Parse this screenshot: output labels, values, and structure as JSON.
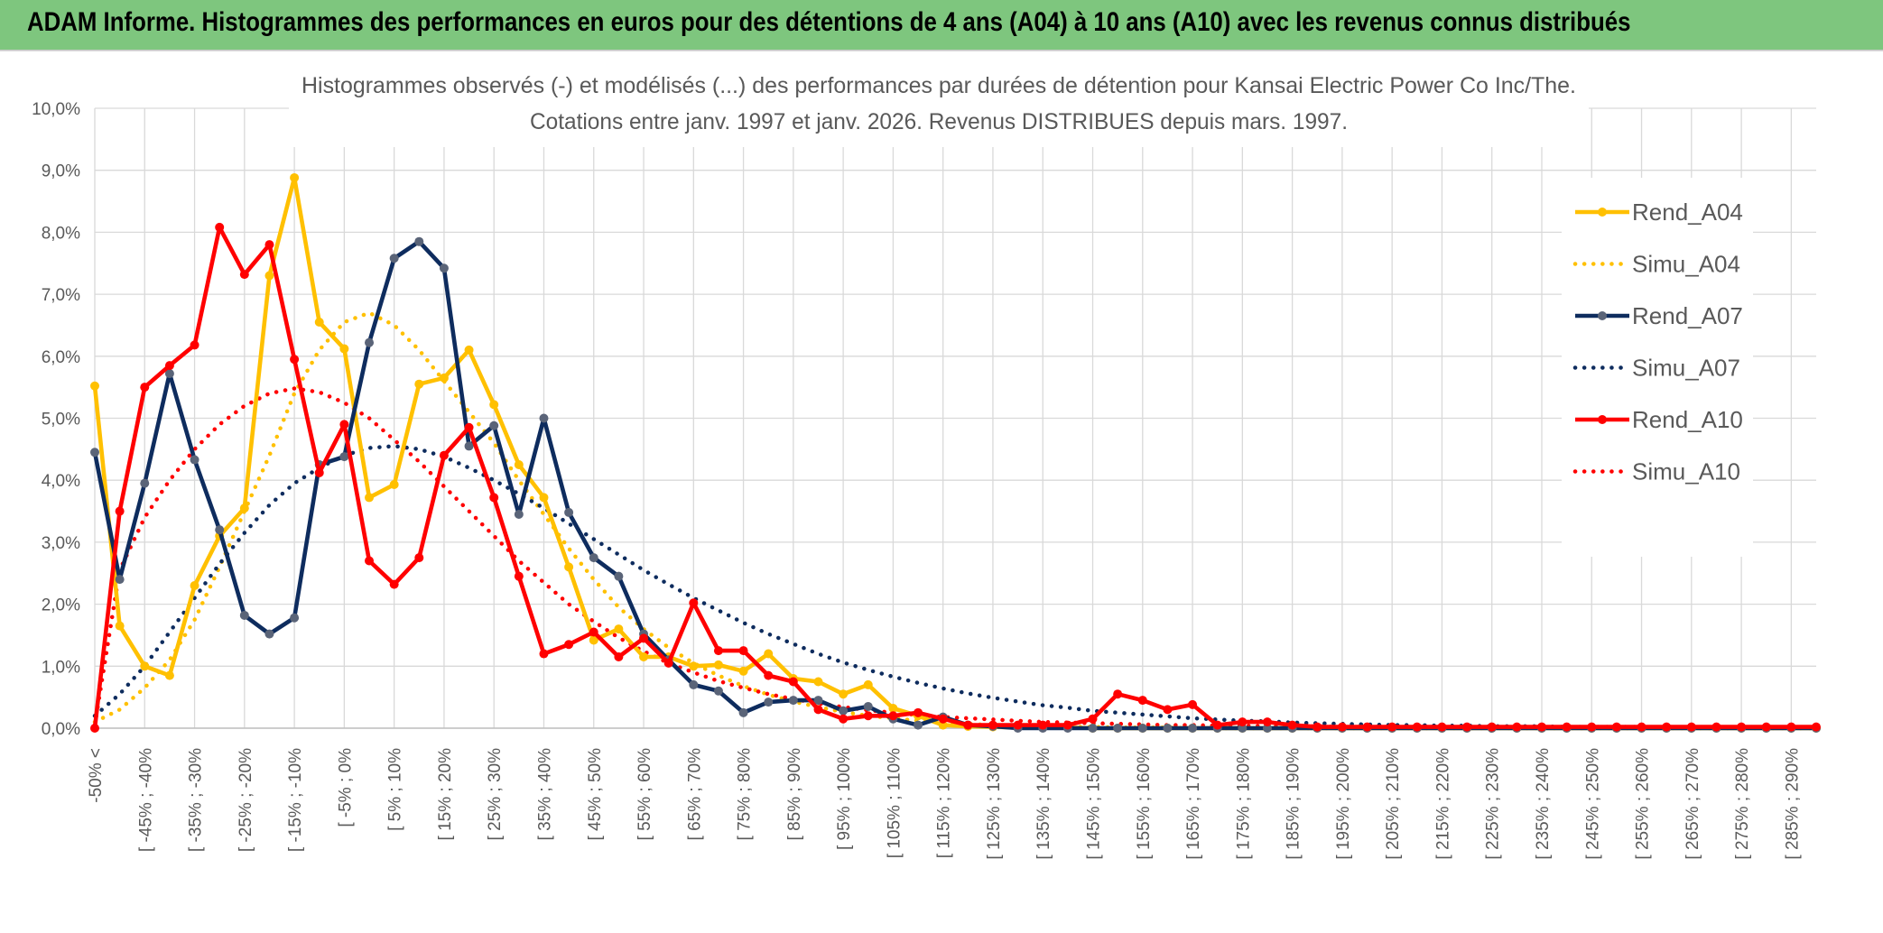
{
  "banner": {
    "title": "ADAM Informe. Histogrammes des performances en euros pour des détentions de 4 ans (A04) à 10 ans (A10) avec les revenus connus distribués"
  },
  "colors": {
    "banner_bg": "#7ec67e",
    "A04": "#FFC000",
    "A07": "#0E2C5E",
    "A10": "#FF0000",
    "grid": "#d9d9d9",
    "axis_text": "#595959"
  },
  "chart_data": {
    "type": "line",
    "title": "Histogrammes observés (-) et modélisés (...) des performances par durées de détention pour Kansai Electric Power Co Inc/The.",
    "subtitle": "Cotations entre janv. 1997 et janv. 2026. Revenus DISTRIBUES depuis mars. 1997.",
    "xlabel": "",
    "ylabel": "",
    "ylim": [
      0,
      10
    ],
    "y_ticks": [
      "0,0%",
      "1,0%",
      "2,0%",
      "3,0%",
      "4,0%",
      "5,0%",
      "6,0%",
      "7,0%",
      "8,0%",
      "9,0%",
      "10,0%"
    ],
    "x_tick_labels": [
      "-50% <",
      "[ -45% ; -40%",
      "[ -35% ; -30%",
      "[ -25% ; -20%",
      "[ -15% ; -10%",
      "[ -5% ; 0%",
      "[ 5% ; 10%",
      "[ 15% ; 20%",
      "[ 25% ; 30%",
      "[ 35% ; 40%",
      "[ 45% ; 50%",
      "[ 55% ; 60%",
      "[ 65% ; 70%",
      "[ 75% ; 80%",
      "[ 85% ; 90%",
      "[ 95% ; 100%",
      "[ 105% ; 110%",
      "[ 115% ; 120%",
      "[ 125% ; 130%",
      "[ 135% ; 140%",
      "[ 145% ; 150%",
      "[ 155% ; 160%",
      "[ 165% ; 170%",
      "[ 175% ; 180%",
      "[ 185% ; 190%",
      "[ 195% ; 200%",
      "[ 205% ; 210%",
      "[ 215% ; 220%",
      "[ 225% ; 230%",
      "[ 235% ; 240%",
      "[ 245% ; 250%",
      "[ 255% ; 260%",
      "[ 265% ; 270%",
      "[ 275% ; 280%",
      "[ 285% ; 290%"
    ],
    "n_categories": 70,
    "grid": true,
    "legend_position": "right",
    "series": [
      {
        "name": "Rend_A04",
        "style": "solid",
        "color_key": "A04",
        "values": [
          5.52,
          1.65,
          1.0,
          0.85,
          2.3,
          3.1,
          3.55,
          7.3,
          8.88,
          6.55,
          6.12,
          3.72,
          3.93,
          5.55,
          5.65,
          6.1,
          5.22,
          4.25,
          3.72,
          2.6,
          1.42,
          1.6,
          1.15,
          1.15,
          1.0,
          1.02,
          0.92,
          1.2,
          0.8,
          0.75,
          0.55,
          0.7,
          0.32,
          0.2,
          0.05,
          0.03,
          0.02,
          0.01,
          0.01,
          0.01,
          0.0,
          0.0,
          0.0,
          0.0,
          0.0,
          0.0,
          0.0,
          0.0,
          0.0,
          0.0,
          0.0,
          0.0,
          0.0,
          0.0,
          0.0,
          0.0,
          0.0,
          0.0,
          0.0,
          0.0,
          0.0,
          0.0,
          0.0,
          0.0,
          0.0,
          0.0,
          0.0,
          0.0,
          0.0,
          0.0
        ]
      },
      {
        "name": "Simu_A04",
        "style": "dotted",
        "color_key": "A04",
        "values": [
          0.1,
          0.3,
          0.65,
          1.1,
          1.75,
          2.6,
          3.5,
          4.4,
          5.4,
          6.1,
          6.55,
          6.7,
          6.5,
          6.1,
          5.6,
          5.1,
          4.6,
          4.0,
          3.45,
          2.9,
          2.4,
          1.95,
          1.6,
          1.3,
          1.05,
          0.85,
          0.68,
          0.54,
          0.43,
          0.34,
          0.26,
          0.2,
          0.16,
          0.12,
          0.09,
          0.07,
          0.05,
          0.04,
          0.03,
          0.02,
          0.02,
          0.01,
          0.01,
          0.01,
          0.0,
          0.0,
          0.0,
          0.0,
          0.0,
          0.0,
          0.0,
          0.0,
          0.0,
          0.0,
          0.0,
          0.0,
          0.0,
          0.0,
          0.0,
          0.0,
          0.0,
          0.0,
          0.0,
          0.0,
          0.0,
          0.0,
          0.0,
          0.0,
          0.0,
          0.0
        ]
      },
      {
        "name": "Rend_A07",
        "style": "solid",
        "color_key": "A07",
        "values": [
          4.45,
          2.4,
          3.95,
          5.72,
          4.33,
          3.2,
          1.82,
          1.52,
          1.78,
          4.25,
          4.38,
          6.22,
          7.58,
          7.85,
          7.42,
          4.55,
          4.88,
          3.45,
          5.0,
          3.48,
          2.75,
          2.45,
          1.52,
          1.1,
          0.7,
          0.6,
          0.25,
          0.42,
          0.45,
          0.45,
          0.28,
          0.35,
          0.15,
          0.05,
          0.18,
          0.05,
          0.03,
          0.0,
          0.0,
          0.0,
          0.0,
          0.0,
          0.0,
          0.0,
          0.0,
          0.0,
          0.0,
          0.0,
          0.0,
          0.0,
          0.0,
          0.0,
          0.0,
          0.0,
          0.0,
          0.0,
          0.0,
          0.0,
          0.0,
          0.0,
          0.0,
          0.0,
          0.0,
          0.0,
          0.0,
          0.0,
          0.0,
          0.0,
          0.0,
          0.0
        ]
      },
      {
        "name": "Simu_A07",
        "style": "dotted",
        "color_key": "A07",
        "values": [
          0.2,
          0.55,
          1.0,
          1.55,
          2.1,
          2.65,
          3.15,
          3.6,
          3.95,
          4.2,
          4.4,
          4.52,
          4.55,
          4.5,
          4.38,
          4.2,
          4.0,
          3.78,
          3.55,
          3.3,
          3.05,
          2.8,
          2.55,
          2.32,
          2.1,
          1.9,
          1.7,
          1.52,
          1.36,
          1.2,
          1.06,
          0.94,
          0.83,
          0.73,
          0.64,
          0.56,
          0.49,
          0.43,
          0.37,
          0.33,
          0.28,
          0.25,
          0.22,
          0.19,
          0.16,
          0.14,
          0.12,
          0.11,
          0.09,
          0.08,
          0.07,
          0.06,
          0.05,
          0.05,
          0.04,
          0.04,
          0.03,
          0.03,
          0.03,
          0.02,
          0.02,
          0.02,
          0.02,
          0.01,
          0.01,
          0.01,
          0.01,
          0.01,
          0.01,
          0.01
        ]
      },
      {
        "name": "Rend_A10",
        "style": "solid",
        "color_key": "A10",
        "values": [
          0.0,
          3.5,
          5.5,
          5.85,
          6.18,
          8.08,
          7.32,
          7.8,
          5.95,
          4.12,
          4.9,
          2.7,
          2.32,
          2.75,
          4.4,
          4.85,
          3.72,
          2.45,
          1.2,
          1.35,
          1.55,
          1.15,
          1.45,
          1.05,
          2.02,
          1.25,
          1.25,
          0.85,
          0.75,
          0.3,
          0.15,
          0.2,
          0.2,
          0.25,
          0.15,
          0.05,
          0.05,
          0.05,
          0.05,
          0.05,
          0.15,
          0.55,
          0.45,
          0.3,
          0.38,
          0.05,
          0.1,
          0.1,
          0.05,
          0.02,
          0.02,
          0.02,
          0.02,
          0.02,
          0.02,
          0.02,
          0.02,
          0.02,
          0.02,
          0.02,
          0.02,
          0.02,
          0.02,
          0.02,
          0.02,
          0.02,
          0.02,
          0.02,
          0.02,
          0.02
        ]
      },
      {
        "name": "Simu_A10",
        "style": "dotted",
        "color_key": "A10",
        "values": [
          0.05,
          2.55,
          3.4,
          4.0,
          4.5,
          4.9,
          5.2,
          5.4,
          5.48,
          5.42,
          5.25,
          5.0,
          4.65,
          4.3,
          3.9,
          3.5,
          3.1,
          2.7,
          2.35,
          2.0,
          1.72,
          1.46,
          1.24,
          1.05,
          0.9,
          0.76,
          0.65,
          0.55,
          0.47,
          0.4,
          0.34,
          0.29,
          0.25,
          0.21,
          0.18,
          0.16,
          0.14,
          0.12,
          0.1,
          0.09,
          0.08,
          0.07,
          0.06,
          0.05,
          0.05,
          0.04,
          0.04,
          0.03,
          0.03,
          0.03,
          0.02,
          0.02,
          0.02,
          0.02,
          0.02,
          0.02,
          0.01,
          0.01,
          0.01,
          0.01,
          0.01,
          0.01,
          0.01,
          0.01,
          0.01,
          0.01,
          0.01,
          0.01,
          0.01,
          0.01
        ]
      }
    ]
  }
}
